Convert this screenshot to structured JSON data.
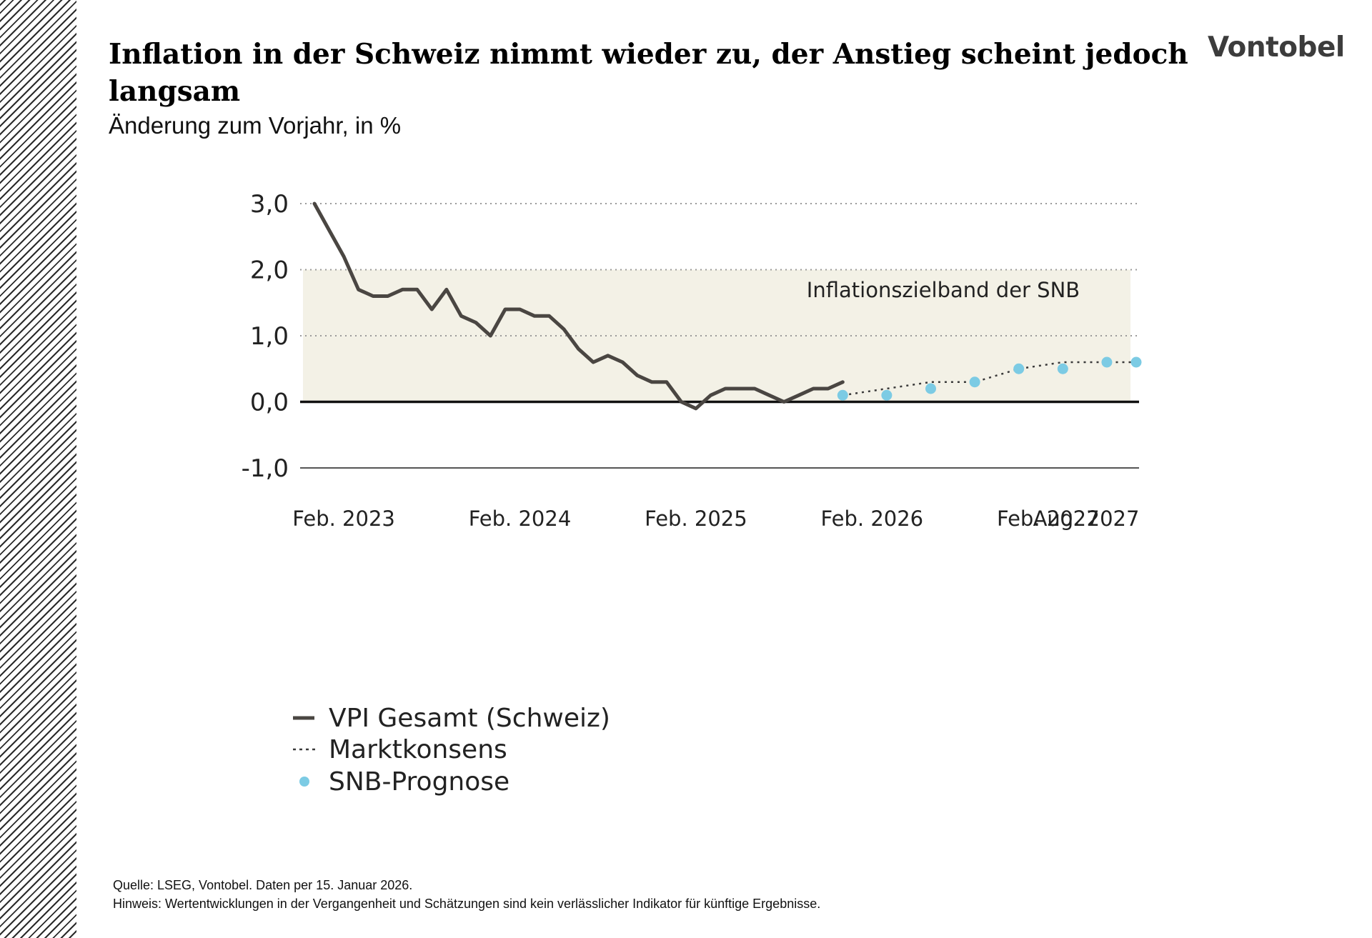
{
  "header": {
    "title": "Inflation in der Schweiz nimmt wieder zu, der Anstieg scheint jedoch langsam",
    "subtitle": "Änderung zum Vorjahr, in %",
    "brand": "Vontobel"
  },
  "footer": {
    "source": "Quelle: LSEG, Vontobel. Daten per 15. Januar 2026.",
    "note": "Hinweis: Wertentwicklungen in der Vergangenheit und Schätzungen sind kein verlässlicher Indikator für künftige Ergebnisse."
  },
  "colors": {
    "cpi_line": "#4a4642",
    "forecast_dots": "#7ccbe4",
    "consensus_line": "#3a3a3a",
    "target_band": "#f3f1e6",
    "gridline": "#9a9a9a",
    "zero_line": "#111111"
  },
  "chart_data": {
    "type": "line",
    "ylim": [
      -1.0,
      3.0
    ],
    "yticks": [
      3.0,
      2.0,
      1.0,
      0.0,
      -1.0
    ],
    "ytick_labels": [
      "3,0",
      "2,0",
      "1,0",
      "0,0",
      "-1,0"
    ],
    "xlim": [
      "2022-12",
      "2027-08"
    ],
    "xticks": [
      {
        "date": "2023-02",
        "label": "Feb. 2023"
      },
      {
        "date": "2024-02",
        "label": "Feb. 2024"
      },
      {
        "date": "2025-02",
        "label": "Feb. 2025"
      },
      {
        "date": "2026-02",
        "label": "Feb. 2026"
      },
      {
        "date": "2027-02",
        "label": "Feb. 2027"
      },
      {
        "date": "2027-08",
        "label": "Aug. 2027"
      }
    ],
    "grid": "dotted horizontal",
    "band": {
      "from": 0.0,
      "to": 2.0,
      "label": "Inflationszielband der SNB"
    },
    "legend_position": "bottom-left",
    "series": [
      {
        "name": "VPI Gesamt (Schweiz)",
        "style": "solid line",
        "x": [
          "2022-12",
          "2023-01",
          "2023-02",
          "2023-03",
          "2023-04",
          "2023-05",
          "2023-06",
          "2023-07",
          "2023-08",
          "2023-09",
          "2023-10",
          "2023-11",
          "2023-12",
          "2024-01",
          "2024-02",
          "2024-03",
          "2024-04",
          "2024-05",
          "2024-06",
          "2024-07",
          "2024-08",
          "2024-09",
          "2024-10",
          "2024-11",
          "2024-12",
          "2025-01",
          "2025-02",
          "2025-03",
          "2025-04",
          "2025-05",
          "2025-06",
          "2025-07",
          "2025-08",
          "2025-09",
          "2025-10",
          "2025-11",
          "2025-12"
        ],
        "values": [
          3.0,
          2.6,
          2.2,
          1.7,
          1.6,
          1.6,
          1.7,
          1.7,
          1.4,
          1.7,
          1.3,
          1.2,
          1.0,
          1.4,
          1.4,
          1.3,
          1.3,
          1.1,
          0.8,
          0.6,
          0.7,
          0.6,
          0.4,
          0.3,
          0.3,
          0.0,
          -0.1,
          0.1,
          0.2,
          0.2,
          0.2,
          0.1,
          0.0,
          0.1,
          0.2,
          0.2,
          0.3
        ]
      },
      {
        "name": "Marktkonsens",
        "style": "dotted line",
        "x": [
          "2025-12",
          "2026-03",
          "2026-06",
          "2026-09",
          "2026-12",
          "2027-03",
          "2027-06",
          "2027-08"
        ],
        "values": [
          0.1,
          0.2,
          0.3,
          0.3,
          0.5,
          0.6,
          0.6,
          0.6
        ]
      },
      {
        "name": "SNB-Prognose",
        "style": "dots",
        "x": [
          "2025-12",
          "2026-03",
          "2026-06",
          "2026-09",
          "2026-12",
          "2027-03",
          "2027-06",
          "2027-08"
        ],
        "values": [
          0.1,
          0.1,
          0.2,
          0.3,
          0.5,
          0.5,
          0.6,
          0.6
        ]
      }
    ]
  }
}
